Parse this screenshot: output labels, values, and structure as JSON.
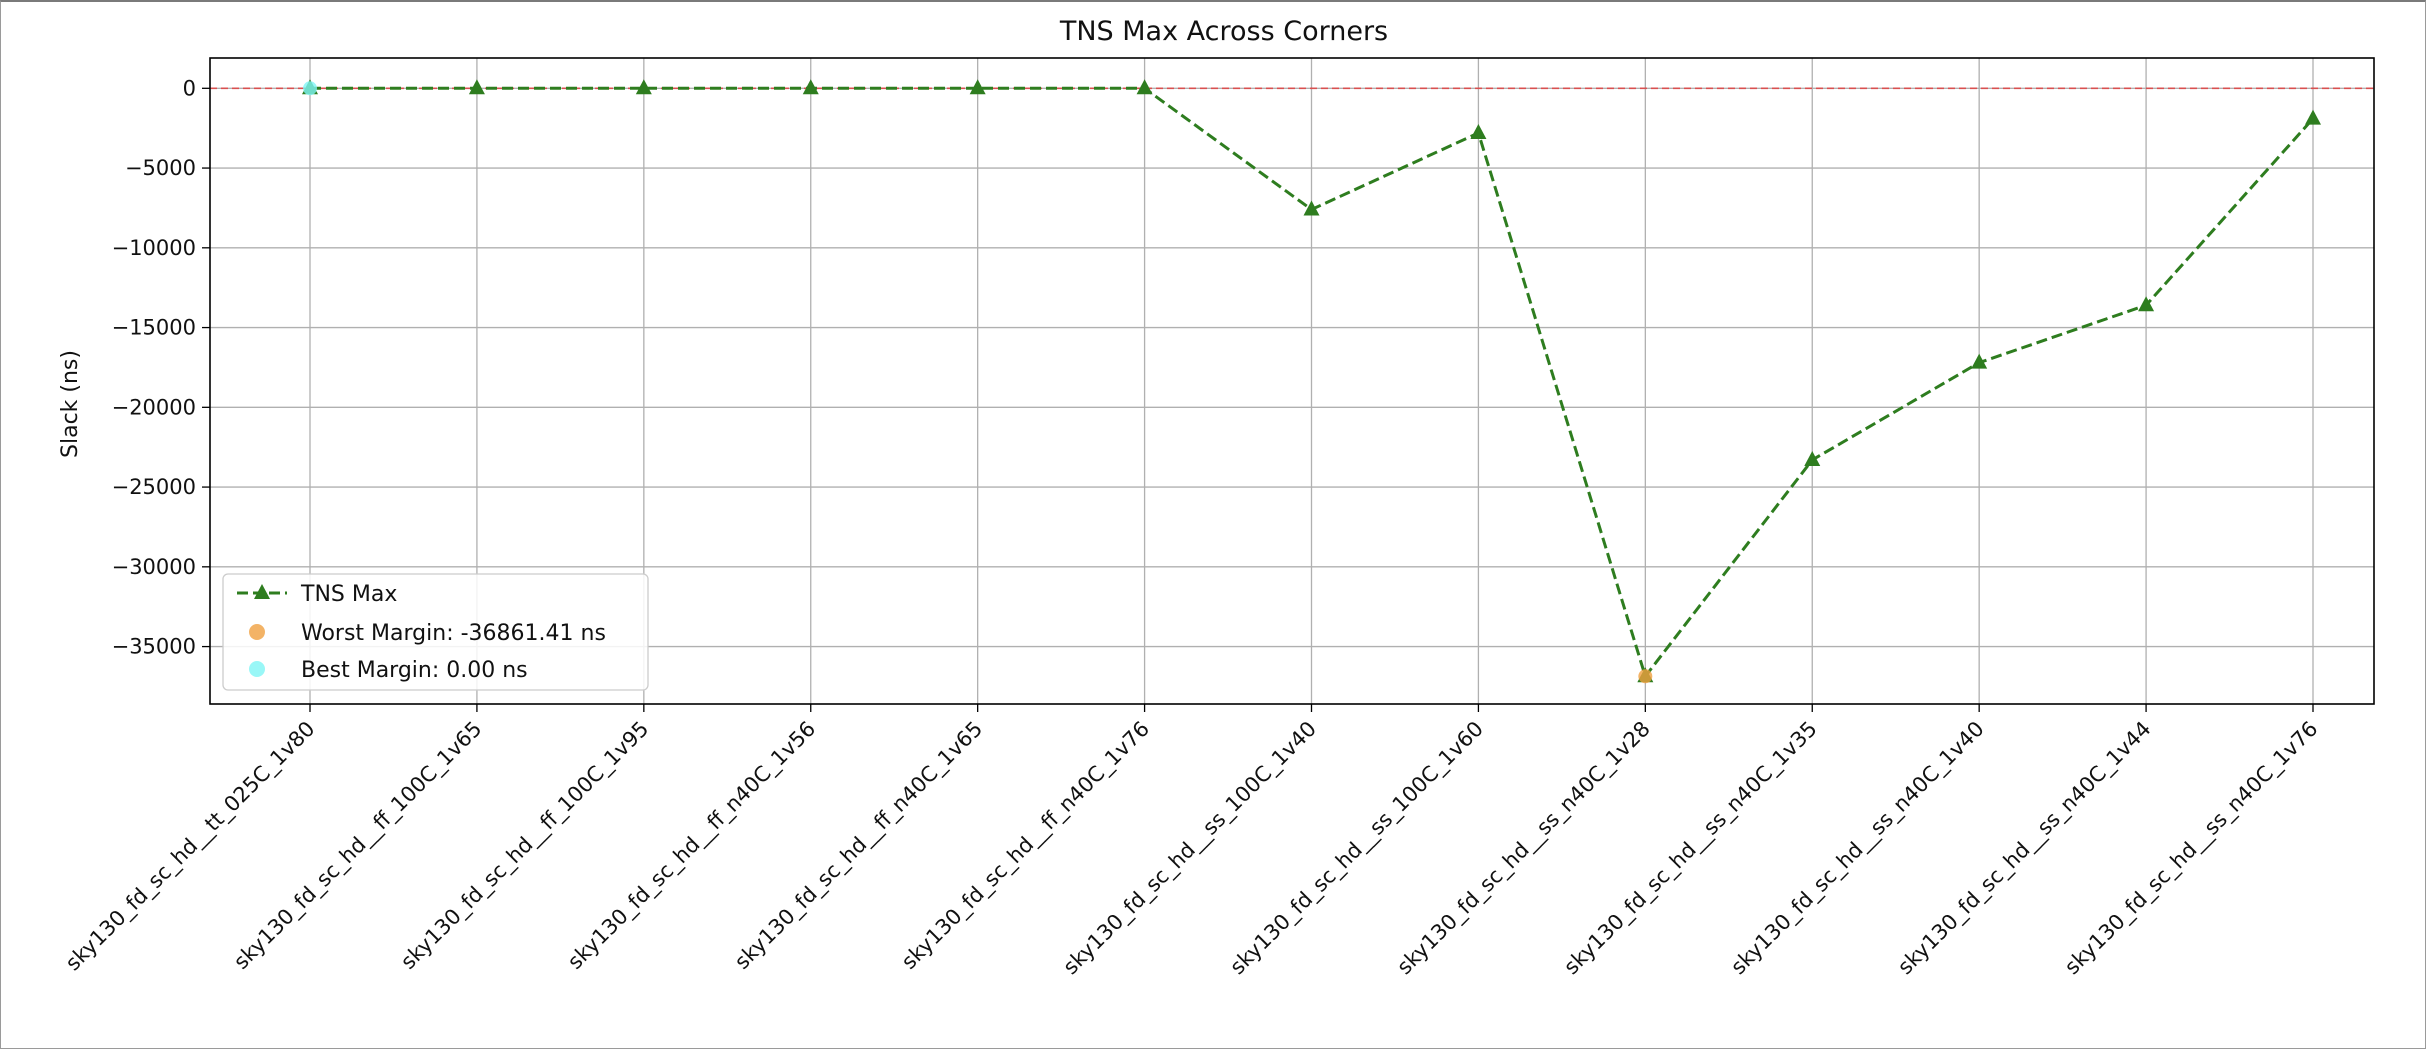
{
  "chart_data": {
    "type": "line",
    "title": "TNS Max Across Corners",
    "xlabel": "",
    "ylabel": "Slack (ns)",
    "categories": [
      "sky130_fd_sc_hd__tt_025C_1v80",
      "sky130_fd_sc_hd__ff_100C_1v65",
      "sky130_fd_sc_hd__ff_100C_1v95",
      "sky130_fd_sc_hd__ff_n40C_1v56",
      "sky130_fd_sc_hd__ff_n40C_1v65",
      "sky130_fd_sc_hd__ff_n40C_1v76",
      "sky130_fd_sc_hd__ss_100C_1v40",
      "sky130_fd_sc_hd__ss_100C_1v60",
      "sky130_fd_sc_hd__ss_n40C_1v28",
      "sky130_fd_sc_hd__ss_n40C_1v35",
      "sky130_fd_sc_hd__ss_n40C_1v40",
      "sky130_fd_sc_hd__ss_n40C_1v44",
      "sky130_fd_sc_hd__ss_n40C_1v76"
    ],
    "series": [
      {
        "name": "TNS Max",
        "values": [
          0,
          0,
          0,
          0,
          0,
          0,
          -7600,
          -2800,
          -36861.41,
          -23300,
          -17200,
          -13600,
          -1900
        ],
        "color": "#2e7d1f",
        "style": "dashed",
        "marker": "triangle"
      }
    ],
    "highlights": [
      {
        "name": "Worst Margin: -36861.41 ns",
        "index": 8,
        "value": -36861.41,
        "color": "#f0a040"
      },
      {
        "name": "Best Margin: 0.00 ns",
        "index": 0,
        "value": 0,
        "color": "#7ff5f5"
      }
    ],
    "reference_line": {
      "value": 0,
      "color": "#e04040",
      "style": "dashed"
    },
    "yticks": [
      0,
      -5000,
      -10000,
      -15000,
      -20000,
      -25000,
      -30000,
      -35000
    ],
    "ytick_labels": [
      "0",
      "−5000",
      "−10000",
      "−15000",
      "−20000",
      "−25000",
      "−30000",
      "−35000"
    ],
    "ylim": [
      -38600,
      1900
    ],
    "grid": true,
    "legend_position": "lower-left"
  }
}
